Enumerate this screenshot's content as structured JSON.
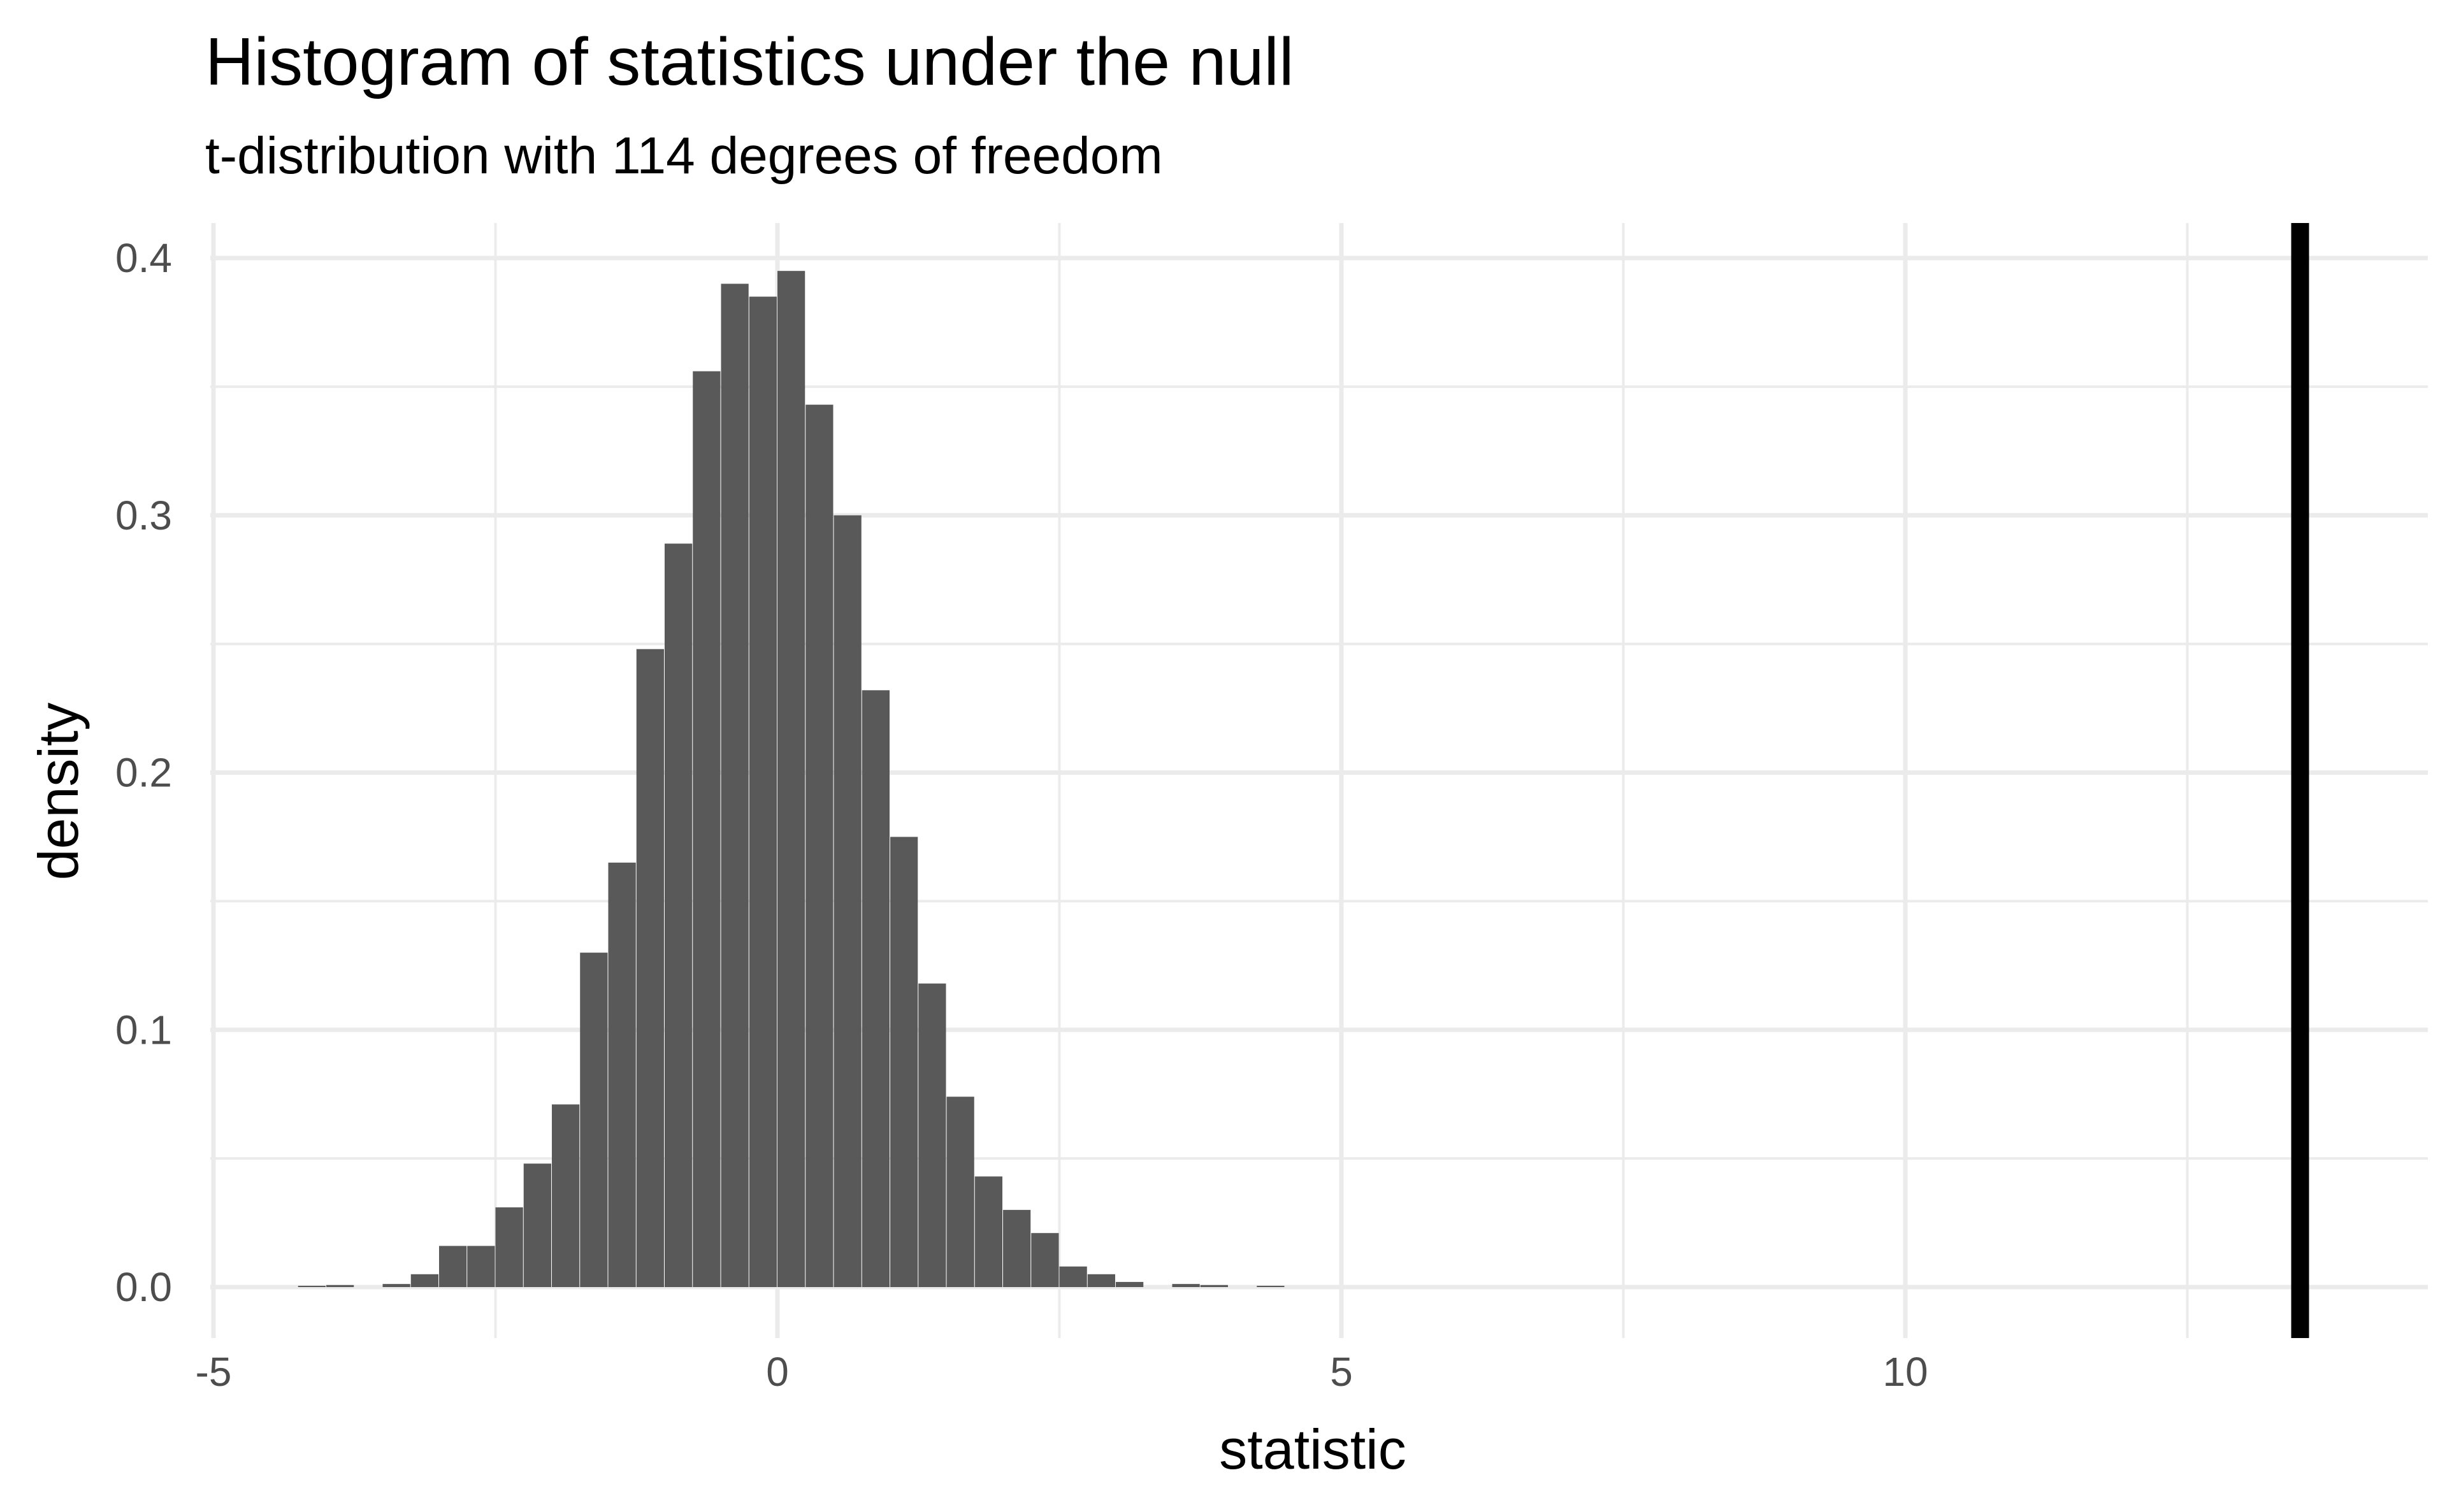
{
  "chart_data": {
    "type": "bar",
    "title": "Histogram of statistics under the null",
    "subtitle": "t-distribution with 114 degrees of freedom",
    "xlabel": "statistic",
    "ylabel": "density",
    "xlim": [
      -5.0,
      14.3
    ],
    "ylim": [
      0,
      0.4
    ],
    "x_ticks": [
      -5,
      0,
      5,
      10
    ],
    "y_ticks": [
      0.0,
      0.1,
      0.2,
      0.3,
      0.4
    ],
    "x_tick_labels": [
      "-5",
      "0",
      "5",
      "10"
    ],
    "y_tick_labels": [
      "0.0",
      "0.1",
      "0.2",
      "0.3",
      "0.4"
    ],
    "grid": true,
    "bin_width": 0.25,
    "bins": [
      {
        "x": -4.125,
        "density": 0.0005
      },
      {
        "x": -3.875,
        "density": 0.0008
      },
      {
        "x": -3.375,
        "density": 0.0012
      },
      {
        "x": -3.125,
        "density": 0.005
      },
      {
        "x": -2.875,
        "density": 0.016
      },
      {
        "x": -2.625,
        "density": 0.016
      },
      {
        "x": -2.375,
        "density": 0.031
      },
      {
        "x": -2.125,
        "density": 0.048
      },
      {
        "x": -1.875,
        "density": 0.071
      },
      {
        "x": -1.625,
        "density": 0.13
      },
      {
        "x": -1.375,
        "density": 0.165
      },
      {
        "x": -1.125,
        "density": 0.248
      },
      {
        "x": -0.875,
        "density": 0.289
      },
      {
        "x": -0.625,
        "density": 0.356
      },
      {
        "x": -0.375,
        "density": 0.39
      },
      {
        "x": -0.125,
        "density": 0.385
      },
      {
        "x": 0.125,
        "density": 0.395
      },
      {
        "x": 0.375,
        "density": 0.343
      },
      {
        "x": 0.625,
        "density": 0.3
      },
      {
        "x": 0.875,
        "density": 0.232
      },
      {
        "x": 1.125,
        "density": 0.175
      },
      {
        "x": 1.375,
        "density": 0.118
      },
      {
        "x": 1.625,
        "density": 0.074
      },
      {
        "x": 1.875,
        "density": 0.043
      },
      {
        "x": 2.125,
        "density": 0.03
      },
      {
        "x": 2.375,
        "density": 0.021
      },
      {
        "x": 2.625,
        "density": 0.008
      },
      {
        "x": 2.875,
        "density": 0.005
      },
      {
        "x": 3.125,
        "density": 0.002
      },
      {
        "x": 3.625,
        "density": 0.0012
      },
      {
        "x": 3.875,
        "density": 0.0008
      },
      {
        "x": 4.375,
        "density": 0.0005
      }
    ],
    "observed_statistic": 13.5,
    "bar_color": "#595959",
    "line_color": "#000000"
  }
}
